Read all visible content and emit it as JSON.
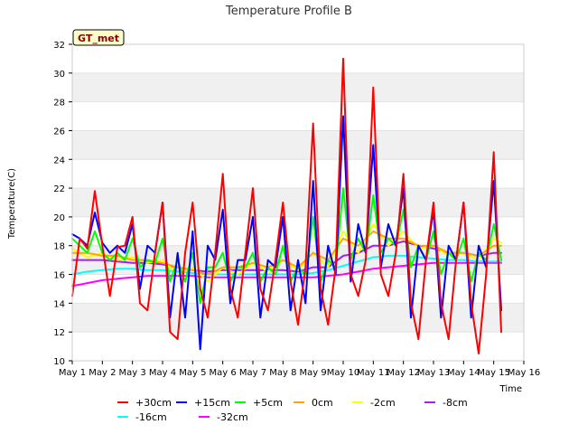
{
  "chart_data": {
    "type": "line",
    "title": "Temperature Profile B",
    "xlabel": "Time",
    "ylabel": "Temperature(C)",
    "badge": "GT_met",
    "xlim": [
      1,
      16
    ],
    "ylim": [
      10,
      32
    ],
    "x_ticks": [
      {
        "v": 1,
        "label": "May 1"
      },
      {
        "v": 2,
        "label": "May 2"
      },
      {
        "v": 3,
        "label": "May 3"
      },
      {
        "v": 4,
        "label": "May 4"
      },
      {
        "v": 5,
        "label": "May 5"
      },
      {
        "v": 6,
        "label": "May 6"
      },
      {
        "v": 7,
        "label": "May 7"
      },
      {
        "v": 8,
        "label": "May 8"
      },
      {
        "v": 9,
        "label": "May 9"
      },
      {
        "v": 10,
        "label": "May 10"
      },
      {
        "v": 11,
        "label": "May 11"
      },
      {
        "v": 12,
        "label": "May 12"
      },
      {
        "v": 13,
        "label": "May 13"
      },
      {
        "v": 14,
        "label": "May 14"
      },
      {
        "v": 15,
        "label": "May 15"
      },
      {
        "v": 16,
        "label": "May 16"
      }
    ],
    "y_ticks": [
      10,
      12,
      14,
      16,
      18,
      20,
      22,
      24,
      26,
      28,
      30,
      32
    ],
    "grid": "horizontal bands",
    "legend_position": "bottom",
    "series": [
      {
        "name": "+30cm",
        "color": "#ff0000",
        "x": [
          1.0,
          1.25,
          1.5,
          1.75,
          2.0,
          2.25,
          2.5,
          2.75,
          3.0,
          3.25,
          3.5,
          3.75,
          4.0,
          4.25,
          4.5,
          4.75,
          5.0,
          5.25,
          5.5,
          5.75,
          6.0,
          6.25,
          6.5,
          6.75,
          7.0,
          7.25,
          7.5,
          7.75,
          8.0,
          8.25,
          8.5,
          8.75,
          9.0,
          9.25,
          9.5,
          9.75,
          10.0,
          10.25,
          10.5,
          10.75,
          11.0,
          11.25,
          11.5,
          11.75,
          12.0,
          12.25,
          12.5,
          12.75,
          13.0,
          13.25,
          13.5,
          13.75,
          14.0,
          14.25,
          14.5,
          14.75,
          15.0,
          15.25
        ],
        "y": [
          14.5,
          18.5,
          17.8,
          21.8,
          18.0,
          14.5,
          17.9,
          18.0,
          20.0,
          14.0,
          13.5,
          17.5,
          21.0,
          12.0,
          11.5,
          17.5,
          21.0,
          15.0,
          13.0,
          17.5,
          23.0,
          15.0,
          13.0,
          17.5,
          22.0,
          15.0,
          13.5,
          17.0,
          21.0,
          15.5,
          12.5,
          16.5,
          26.5,
          15.0,
          12.5,
          16.5,
          31.0,
          16.0,
          14.5,
          17.0,
          29.0,
          16.0,
          14.5,
          17.5,
          23.0,
          14.0,
          11.5,
          17.0,
          21.0,
          14.0,
          11.5,
          17.0,
          21.0,
          14.0,
          10.5,
          16.0,
          24.5,
          12.0
        ]
      },
      {
        "name": "+15cm",
        "color": "#0000ff",
        "x": [
          1.0,
          1.25,
          1.5,
          1.75,
          2.0,
          2.25,
          2.5,
          2.75,
          3.0,
          3.25,
          3.5,
          3.75,
          4.0,
          4.25,
          4.5,
          4.75,
          5.0,
          5.25,
          5.5,
          5.75,
          6.0,
          6.25,
          6.5,
          6.75,
          7.0,
          7.25,
          7.5,
          7.75,
          8.0,
          8.25,
          8.5,
          8.75,
          9.0,
          9.25,
          9.5,
          9.75,
          10.0,
          10.25,
          10.5,
          10.75,
          11.0,
          11.25,
          11.5,
          11.75,
          12.0,
          12.25,
          12.5,
          12.75,
          13.0,
          13.25,
          13.5,
          13.75,
          14.0,
          14.25,
          14.5,
          14.75,
          15.0,
          15.25
        ],
        "y": [
          18.8,
          18.5,
          18.0,
          20.3,
          18.2,
          17.5,
          18.0,
          17.5,
          19.5,
          15.0,
          18.0,
          17.5,
          21.0,
          13.0,
          17.5,
          13.0,
          19.0,
          10.8,
          18.0,
          17.0,
          20.5,
          14.0,
          17.0,
          17.0,
          20.0,
          13.0,
          17.0,
          16.5,
          20.0,
          13.5,
          17.0,
          14.0,
          22.5,
          13.5,
          18.0,
          16.0,
          27.0,
          15.5,
          19.5,
          17.5,
          25.0,
          16.5,
          19.5,
          18.0,
          22.0,
          13.0,
          18.0,
          17.0,
          20.5,
          13.0,
          18.0,
          17.0,
          21.0,
          13.0,
          18.0,
          16.5,
          22.5,
          13.5
        ]
      },
      {
        "name": "+5cm",
        "color": "#00ff00",
        "x": [
          1.0,
          1.25,
          1.5,
          1.75,
          2.0,
          2.25,
          2.5,
          2.75,
          3.0,
          3.25,
          3.5,
          3.75,
          4.0,
          4.25,
          4.5,
          4.75,
          5.0,
          5.25,
          5.5,
          5.75,
          6.0,
          6.25,
          6.5,
          6.75,
          7.0,
          7.25,
          7.5,
          7.75,
          8.0,
          8.25,
          8.5,
          8.75,
          9.0,
          9.25,
          9.5,
          9.75,
          10.0,
          10.25,
          10.5,
          10.75,
          11.0,
          11.25,
          11.5,
          11.75,
          12.0,
          12.25,
          12.5,
          12.75,
          13.0,
          13.25,
          13.5,
          13.75,
          14.0,
          14.25,
          14.5,
          14.75,
          15.0,
          15.25
        ],
        "y": [
          18.5,
          18.0,
          17.5,
          19.0,
          17.5,
          17.0,
          17.5,
          17.0,
          18.5,
          16.5,
          17.0,
          16.8,
          18.5,
          15.5,
          17.0,
          15.5,
          17.5,
          14.0,
          16.5,
          16.5,
          17.5,
          15.5,
          16.5,
          16.5,
          17.5,
          15.5,
          16.5,
          16.0,
          18.0,
          15.5,
          16.5,
          16.0,
          20.0,
          15.5,
          17.0,
          16.5,
          22.0,
          17.0,
          18.5,
          17.5,
          21.5,
          17.5,
          18.5,
          18.0,
          20.5,
          16.5,
          18.0,
          17.0,
          19.0,
          16.0,
          17.5,
          17.0,
          18.5,
          15.5,
          17.5,
          17.0,
          19.5,
          17.0
        ]
      },
      {
        "name": "0cm",
        "color": "#ffa500",
        "x": [
          1.0,
          1.5,
          2.0,
          2.5,
          3.0,
          3.5,
          4.0,
          4.5,
          5.0,
          5.5,
          6.0,
          6.5,
          7.0,
          7.5,
          8.0,
          8.5,
          9.0,
          9.5,
          10.0,
          10.5,
          11.0,
          11.5,
          12.0,
          12.5,
          13.0,
          13.5,
          14.0,
          14.5,
          15.0,
          15.25
        ],
        "y": [
          17.5,
          17.5,
          17.3,
          17.3,
          17.0,
          17.0,
          16.8,
          16.5,
          16.3,
          16.0,
          16.5,
          16.5,
          16.8,
          16.5,
          17.0,
          16.5,
          17.5,
          17.0,
          18.5,
          18.0,
          19.0,
          18.5,
          18.5,
          18.0,
          18.0,
          17.5,
          17.5,
          17.3,
          18.0,
          18.0
        ]
      },
      {
        "name": "-2cm",
        "color": "#ffff00",
        "x": [
          1.0,
          1.5,
          2.0,
          2.5,
          3.0,
          3.5,
          4.0,
          4.5,
          5.0,
          5.5,
          6.0,
          6.5,
          7.0,
          7.5,
          8.0,
          8.5,
          9.0,
          9.5,
          10.0,
          10.5,
          11.0,
          11.5,
          12.0,
          12.5,
          13.0,
          13.5,
          14.0,
          14.5,
          15.0,
          15.25
        ],
        "y": [
          17.8,
          17.2,
          17.5,
          17.0,
          17.2,
          16.8,
          17.0,
          16.0,
          16.5,
          15.5,
          16.5,
          16.0,
          16.8,
          16.2,
          17.0,
          16.3,
          17.5,
          16.5,
          19.0,
          17.5,
          19.5,
          18.0,
          19.0,
          17.8,
          18.0,
          17.3,
          17.5,
          17.0,
          18.5,
          18.2
        ]
      },
      {
        "name": "-8cm",
        "color": "#a020f0",
        "x": [
          1.0,
          1.5,
          2.0,
          2.5,
          3.0,
          3.5,
          4.0,
          4.5,
          5.0,
          5.5,
          6.0,
          6.5,
          7.0,
          7.5,
          8.0,
          8.5,
          9.0,
          9.5,
          10.0,
          10.5,
          11.0,
          11.5,
          12.0,
          12.5,
          13.0,
          13.5,
          14.0,
          14.5,
          15.0,
          15.25
        ],
        "y": [
          17.0,
          17.0,
          17.0,
          16.9,
          16.8,
          16.8,
          16.7,
          16.5,
          16.3,
          16.2,
          16.3,
          16.3,
          16.3,
          16.3,
          16.3,
          16.2,
          16.5,
          16.5,
          17.3,
          17.5,
          18.0,
          18.0,
          18.3,
          18.0,
          17.8,
          17.5,
          17.5,
          17.3,
          17.5,
          17.5
        ]
      },
      {
        "name": "-16cm",
        "color": "#00ffff",
        "x": [
          1.0,
          1.5,
          2.0,
          2.5,
          3.0,
          3.5,
          4.0,
          4.5,
          5.0,
          5.5,
          6.0,
          6.5,
          7.0,
          7.5,
          8.0,
          8.5,
          9.0,
          9.5,
          10.0,
          10.5,
          11.0,
          11.5,
          12.0,
          12.5,
          13.0,
          13.5,
          14.0,
          14.5,
          15.0,
          15.25
        ],
        "y": [
          16.0,
          16.2,
          16.3,
          16.4,
          16.4,
          16.3,
          16.3,
          16.2,
          16.1,
          16.0,
          16.0,
          16.0,
          16.0,
          16.0,
          16.0,
          16.0,
          16.1,
          16.3,
          16.6,
          16.9,
          17.2,
          17.3,
          17.3,
          17.2,
          17.1,
          17.0,
          17.0,
          16.9,
          16.9,
          16.9
        ]
      },
      {
        "name": "-32cm",
        "color": "#ff00ff",
        "x": [
          1.0,
          1.5,
          2.0,
          2.5,
          3.0,
          3.5,
          4.0,
          4.5,
          5.0,
          5.5,
          6.0,
          6.5,
          7.0,
          7.5,
          8.0,
          8.5,
          9.0,
          9.5,
          10.0,
          10.5,
          11.0,
          11.5,
          12.0,
          12.5,
          13.0,
          13.5,
          14.0,
          14.5,
          15.0,
          15.25
        ],
        "y": [
          15.2,
          15.4,
          15.6,
          15.7,
          15.8,
          15.9,
          15.9,
          15.9,
          15.9,
          15.8,
          15.8,
          15.8,
          15.8,
          15.8,
          15.8,
          15.8,
          15.8,
          15.9,
          16.0,
          16.2,
          16.4,
          16.5,
          16.6,
          16.7,
          16.8,
          16.8,
          16.8,
          16.8,
          16.8,
          16.8
        ]
      }
    ]
  }
}
